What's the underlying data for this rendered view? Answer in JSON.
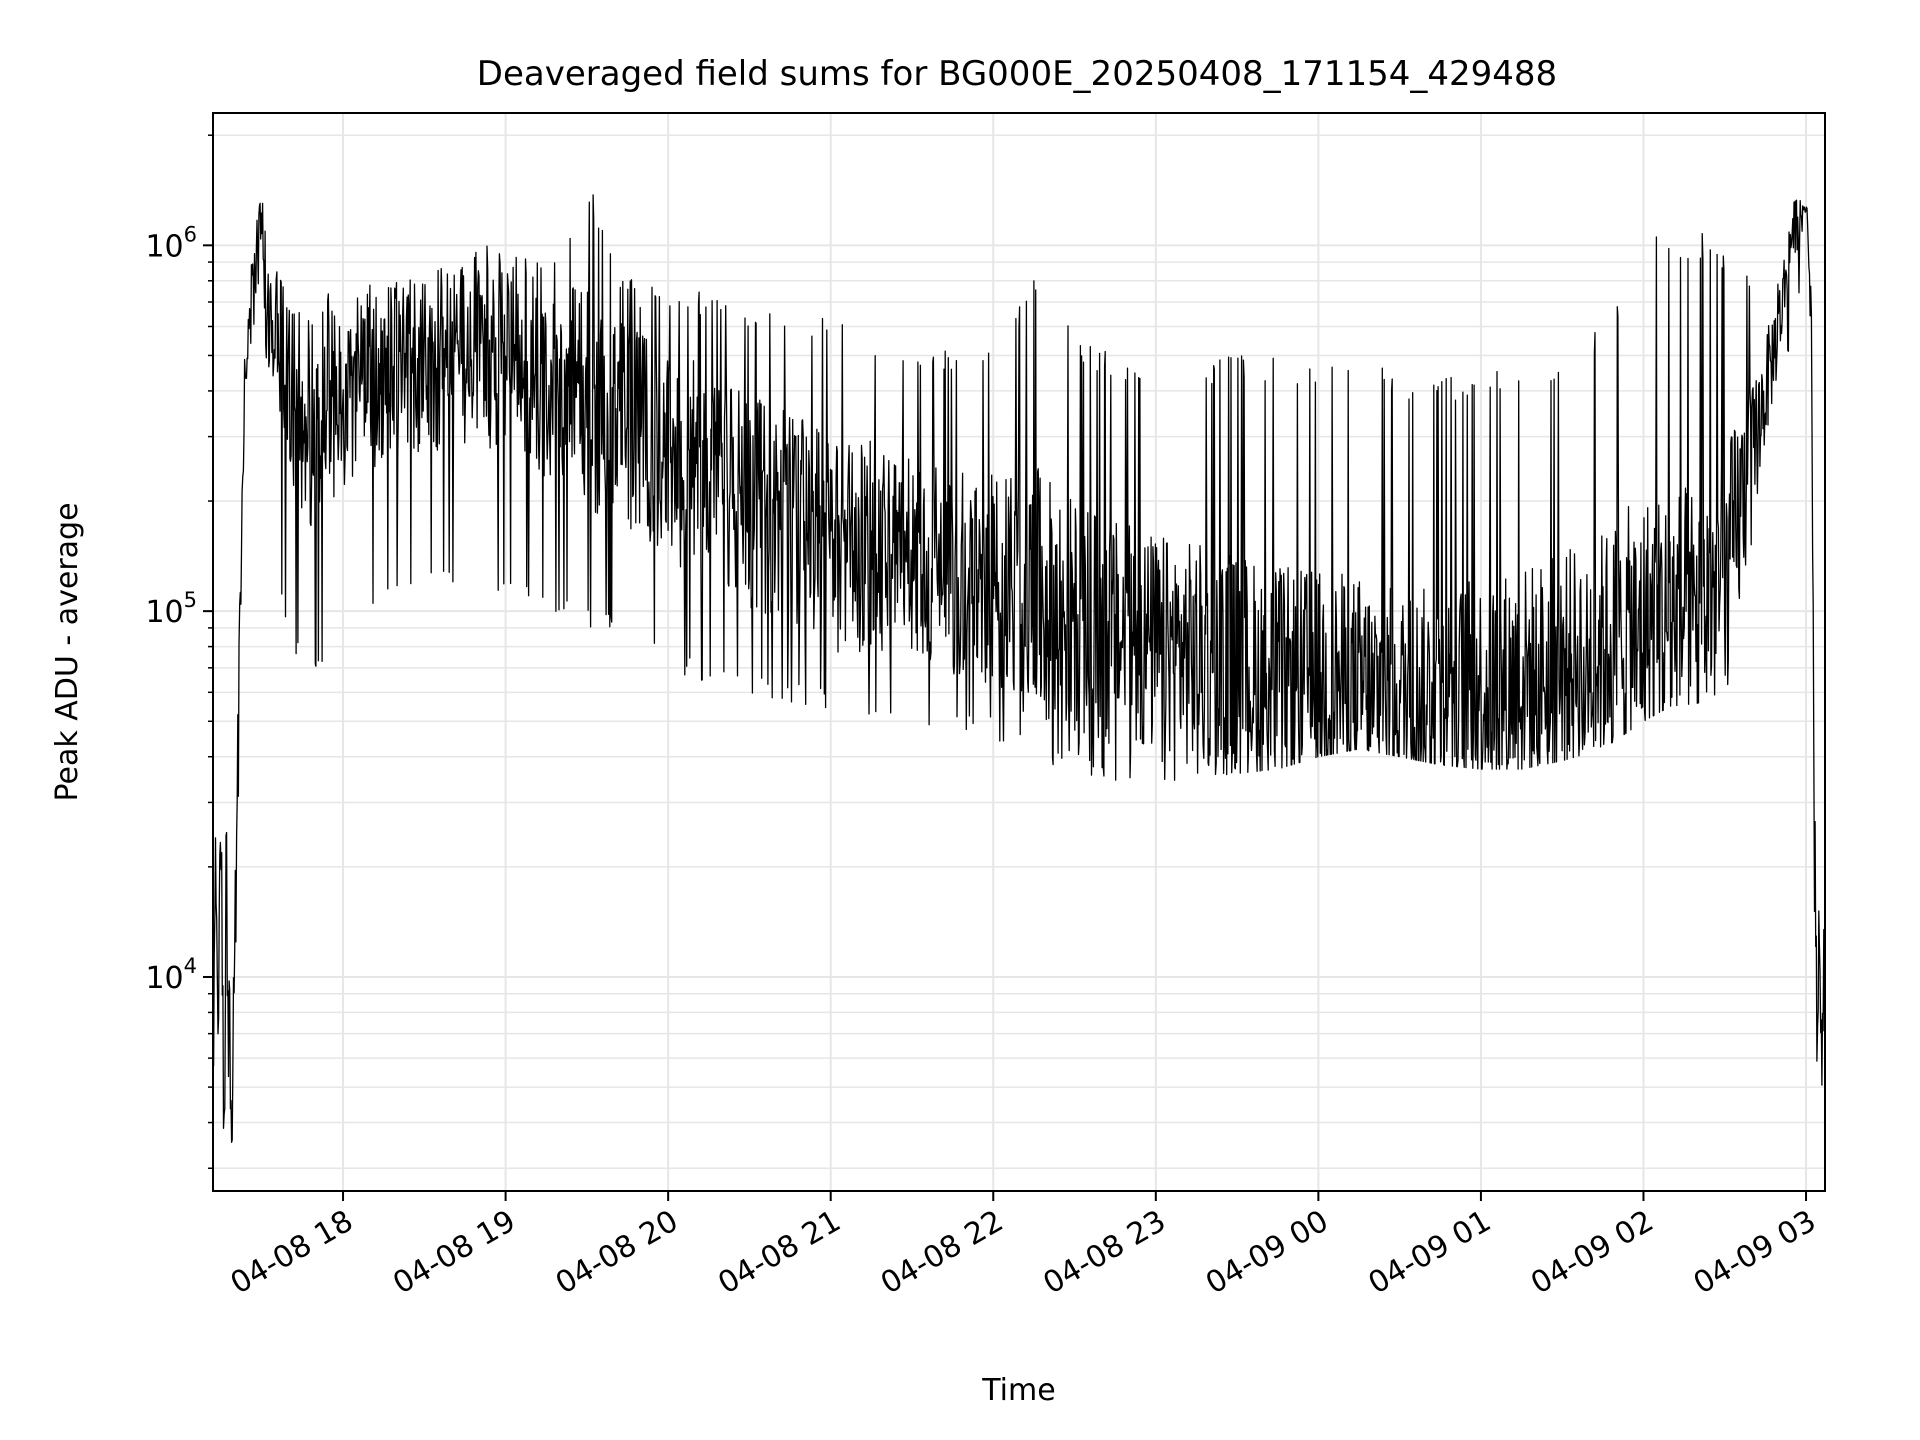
{
  "chart_data": {
    "type": "line",
    "title": "Deaveraged field sums for BG000E_20250408_171154_429488",
    "xlabel": "Time",
    "ylabel": "Peak ADU - average",
    "yscale": "log",
    "grid": true,
    "line_color": "#000000",
    "grid_color": "#e6e6e6",
    "xlim": [
      "2025-04-08 17:12",
      "2025-04-09 03:07"
    ],
    "ylim": [
      2600,
      2300000
    ],
    "x_ticks": [
      {
        "value": "2025-04-08 18:00",
        "label": "04-08 18"
      },
      {
        "value": "2025-04-08 19:00",
        "label": "04-08 19"
      },
      {
        "value": "2025-04-08 20:00",
        "label": "04-08 20"
      },
      {
        "value": "2025-04-08 21:00",
        "label": "04-08 21"
      },
      {
        "value": "2025-04-08 22:00",
        "label": "04-08 22"
      },
      {
        "value": "2025-04-08 23:00",
        "label": "04-08 23"
      },
      {
        "value": "2025-04-09 00:00",
        "label": "04-09 00"
      },
      {
        "value": "2025-04-09 01:00",
        "label": "04-09 01"
      },
      {
        "value": "2025-04-09 02:00",
        "label": "04-09 02"
      },
      {
        "value": "2025-04-09 03:00",
        "label": "04-09 03"
      }
    ],
    "y_ticks": [
      {
        "value": 10000,
        "base": "10",
        "exp": "4"
      },
      {
        "value": 100000,
        "base": "10",
        "exp": "5"
      },
      {
        "value": 1000000,
        "base": "10",
        "exp": "6"
      }
    ],
    "series": [
      {
        "x": [
          "2025-04-08 17:12",
          "2025-04-08 17:13",
          "2025-04-08 17:14",
          "2025-04-08 17:15",
          "2025-04-08 17:16",
          "2025-04-08 17:17",
          "2025-04-08 17:19",
          "2025-04-08 17:20",
          "2025-04-08 17:22",
          "2025-04-08 17:24",
          "2025-04-08 17:26",
          "2025-04-08 17:28",
          "2025-04-08 17:30",
          "2025-04-08 17:32",
          "2025-04-08 17:34",
          "2025-04-08 17:37",
          "2025-04-08 17:40",
          "2025-04-08 17:45",
          "2025-04-08 17:50",
          "2025-04-08 17:55",
          "2025-04-08 18:00",
          "2025-04-08 18:10",
          "2025-04-08 18:20",
          "2025-04-08 18:30",
          "2025-04-08 18:40",
          "2025-04-08 18:50",
          "2025-04-08 19:00",
          "2025-04-08 19:10",
          "2025-04-08 19:20",
          "2025-04-08 19:30",
          "2025-04-08 19:40",
          "2025-04-08 19:50",
          "2025-04-08 20:00",
          "2025-04-08 20:15",
          "2025-04-08 20:30",
          "2025-04-08 20:45",
          "2025-04-08 21:00",
          "2025-04-08 21:15",
          "2025-04-08 21:30",
          "2025-04-08 21:45",
          "2025-04-08 22:00",
          "2025-04-08 22:15",
          "2025-04-08 22:30",
          "2025-04-08 22:45",
          "2025-04-08 23:00",
          "2025-04-08 23:15",
          "2025-04-08 23:30",
          "2025-04-08 23:45",
          "2025-04-09 00:00",
          "2025-04-09 00:15",
          "2025-04-09 00:30",
          "2025-04-09 00:45",
          "2025-04-09 01:00",
          "2025-04-09 01:15",
          "2025-04-09 01:30",
          "2025-04-09 01:45",
          "2025-04-09 02:00",
          "2025-04-09 02:10",
          "2025-04-09 02:20",
          "2025-04-09 02:30",
          "2025-04-09 02:35",
          "2025-04-09 02:40",
          "2025-04-09 02:45",
          "2025-04-09 02:50",
          "2025-04-09 02:55",
          "2025-04-09 03:00",
          "2025-04-09 03:02",
          "2025-04-09 03:03",
          "2025-04-09 03:04",
          "2025-04-09 03:05",
          "2025-04-09 03:06",
          "2025-04-09 03:07"
        ],
        "y": [
          5000,
          22000,
          8000,
          28000,
          3600,
          14000,
          3400,
          12000,
          90000,
          500000,
          600000,
          900000,
          1100000,
          650000,
          700000,
          550000,
          400000,
          350000,
          300000,
          380000,
          380000,
          420000,
          460000,
          470000,
          500000,
          520000,
          480000,
          450000,
          400000,
          380000,
          330000,
          300000,
          260000,
          240000,
          200000,
          180000,
          150000,
          150000,
          140000,
          130000,
          120000,
          110000,
          95000,
          85000,
          80000,
          75000,
          70000,
          65000,
          65000,
          62000,
          60000,
          60000,
          62000,
          66000,
          72000,
          80000,
          90000,
          95000,
          100000,
          120000,
          180000,
          260000,
          400000,
          600000,
          1100000,
          1300000,
          700000,
          30000,
          8000,
          12000,
          6000,
          18000
        ],
        "y_min_envelope": [
          5000,
          9000,
          5000,
          9000,
          3400,
          6000,
          3400,
          6000,
          60000,
          300000,
          350000,
          550000,
          600000,
          200000,
          150000,
          100000,
          80000,
          70000,
          65000,
          70000,
          90000,
          100000,
          110000,
          115000,
          120000,
          115000,
          110000,
          100000,
          95000,
          90000,
          85000,
          75000,
          70000,
          62000,
          58000,
          56000,
          54000,
          52000,
          50000,
          47000,
          45000,
          40000,
          36000,
          34000,
          34000,
          35000,
          36000,
          37000,
          40000,
          42000,
          40000,
          38000,
          37000,
          37000,
          39000,
          42000,
          50000,
          55000,
          56000,
          60000,
          70000,
          150000,
          220000,
          350000,
          600000,
          900000,
          500000,
          15000,
          5000,
          6000,
          4500,
          9000
        ],
        "y_max_envelope": [
          22000,
          28000,
          22000,
          30000,
          12000,
          30000,
          15000,
          33000,
          200000,
          800000,
          1000000,
          1300000,
          1500000,
          1000000,
          900000,
          800000,
          700000,
          750000,
          700000,
          750000,
          650000,
          800000,
          850000,
          900000,
          950000,
          1000000,
          1000000,
          950000,
          900000,
          1600000,
          900000,
          800000,
          800000,
          750000,
          700000,
          650000,
          650000,
          600000,
          550000,
          520000,
          520000,
          800000,
          600000,
          500000,
          450000,
          480000,
          520000,
          500000,
          500000,
          550000,
          420000,
          440000,
          460000,
          480000,
          500000,
          600000,
          1100000,
          1100000,
          1100000,
          1000000,
          900000,
          800000,
          750000,
          900000,
          1300000,
          1400000,
          800000,
          60000,
          16000,
          18000,
          12000,
          18000
        ]
      }
    ]
  }
}
